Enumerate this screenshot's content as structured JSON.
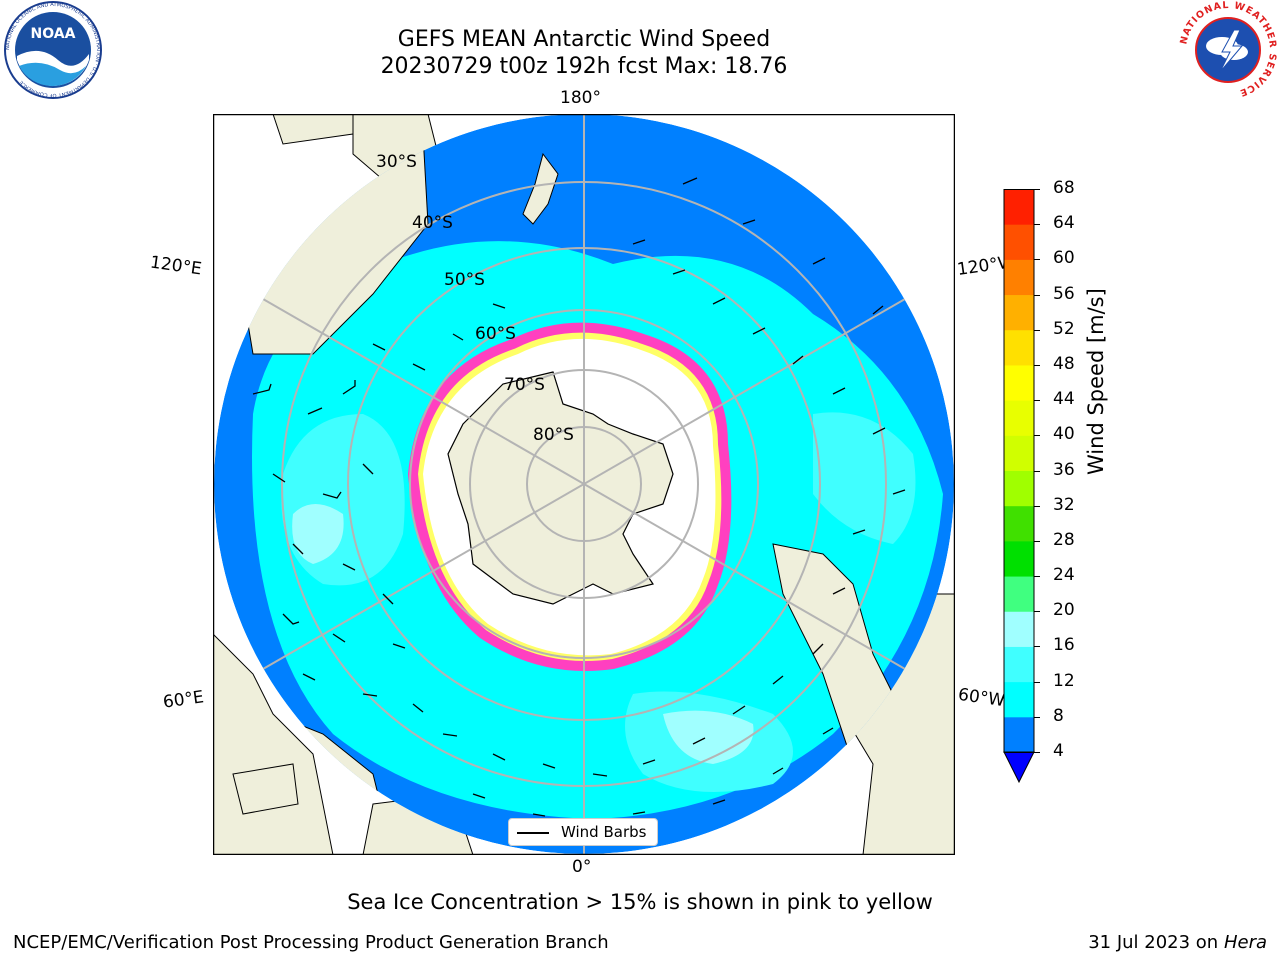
{
  "title": {
    "line1": "GEFS MEAN Antarctic Wind Speed",
    "line2": "20230729 t00z 192h fcst   Max: 18.76"
  },
  "map": {
    "projection": "south-polar-stereographic",
    "longitude_labels": {
      "top": "180°",
      "bottom": "0°",
      "upper_left": "120°E",
      "upper_right": "120°W",
      "lower_left": "60°E",
      "lower_right": "60°W"
    },
    "latitude_labels": [
      "30°S",
      "40°S",
      "50°S",
      "60°S",
      "70°S",
      "80°S"
    ],
    "legend_label": "Wind Barbs",
    "colors": {
      "land": "#efefdb",
      "ocean_low": "#0080ff",
      "ocean_mid": "#00ffff",
      "ocean_high": "#a0ffff",
      "ice_edge": "#ff40c0",
      "grid": "#b4b4b4"
    }
  },
  "colorbar": {
    "label": "Wind Speed [m/s]",
    "ticks": [
      "4",
      "8",
      "12",
      "16",
      "20",
      "24",
      "28",
      "32",
      "36",
      "40",
      "44",
      "48",
      "52",
      "56",
      "60",
      "64",
      "68"
    ],
    "colors": [
      "#0080ff",
      "#00ffff",
      "#40ffff",
      "#a0ffff",
      "#40ff80",
      "#00e000",
      "#40e000",
      "#a0ff00",
      "#d0ff00",
      "#e8ff00",
      "#ffff00",
      "#ffe000",
      "#ffb000",
      "#ff8000",
      "#ff5000",
      "#ff2000"
    ],
    "extend_color": "#0000ff"
  },
  "caption": "Sea Ice Concentration > 15% is shown in pink to yellow",
  "footer": {
    "left": "NCEP/EMC/Verification Post Processing Product Generation Branch",
    "right_date": "31 Jul 2023 on ",
    "right_host": "Hera"
  },
  "logos": {
    "left": "NOAA",
    "left_ring": "NATIONAL OCEANIC AND ATMOSPHERIC ADMINISTRATION · U.S. DEPARTMENT OF COMMERCE",
    "right_ring": "NATIONAL WEATHER SERVICE"
  }
}
